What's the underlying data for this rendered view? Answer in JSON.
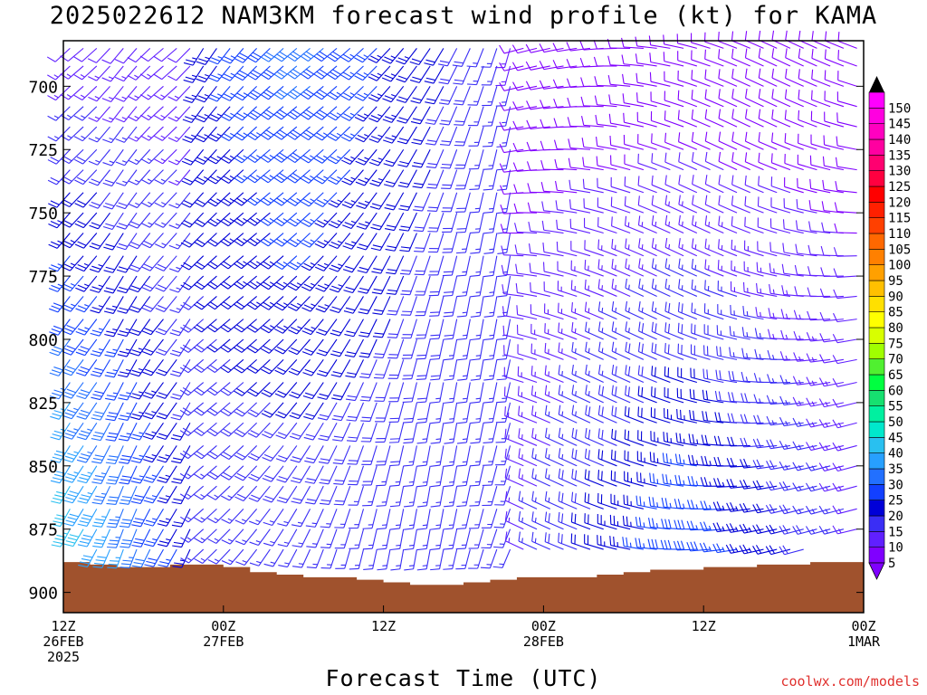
{
  "title": "2025022612 NAM3KM forecast wind profile (kt) for KAMA",
  "credit": "coolwx.com/models",
  "chart_data": {
    "type": "wind_barb_time_height",
    "title": "2025022612 NAM3KM forecast wind profile (kt) for KAMA",
    "xlabel": "Forecast Time (UTC)",
    "ylabel": "",
    "units": "kt",
    "y_axis": {
      "quantity": "pressure (hPa)",
      "ticks": [
        700,
        725,
        750,
        775,
        800,
        825,
        850,
        875,
        900
      ],
      "range": [
        682,
        908
      ],
      "inverted": true
    },
    "x_axis": {
      "range_hours": [
        0,
        60
      ],
      "ticks": [
        {
          "hour": 0,
          "lines": [
            "12Z",
            "26FEB",
            "2025"
          ]
        },
        {
          "hour": 12,
          "lines": [
            "00Z",
            "27FEB"
          ]
        },
        {
          "hour": 24,
          "lines": [
            "12Z"
          ]
        },
        {
          "hour": 36,
          "lines": [
            "00Z",
            "28FEB"
          ]
        },
        {
          "hour": 48,
          "lines": [
            "12Z"
          ]
        },
        {
          "hour": 60,
          "lines": [
            "00Z",
            "1MAR"
          ]
        }
      ]
    },
    "colorbar": {
      "labels": [
        5,
        10,
        15,
        20,
        25,
        30,
        35,
        40,
        45,
        50,
        55,
        60,
        65,
        70,
        75,
        80,
        85,
        90,
        95,
        100,
        105,
        110,
        115,
        120,
        125,
        130,
        135,
        140,
        145,
        150
      ],
      "colors": [
        "#8000ff",
        "#6020ff",
        "#3a2ef5",
        "#0000d8",
        "#1240ff",
        "#2270ff",
        "#27a0ff",
        "#29c0f0",
        "#00e8cc",
        "#00f0a0",
        "#16e070",
        "#00ff40",
        "#50f030",
        "#a0ff00",
        "#d8ff00",
        "#ffff00",
        "#ffe000",
        "#ffc000",
        "#ffa000",
        "#ff8000",
        "#ff6800",
        "#ff4000",
        "#ff2000",
        "#ff0000",
        "#ff0040",
        "#ff0070",
        "#ff00a0",
        "#ff00c0",
        "#ff00e0",
        "#ff00ff"
      ]
    },
    "terrain": {
      "color": "#a0522d",
      "surface_pressure_points": [
        [
          0,
          888
        ],
        [
          2,
          889
        ],
        [
          4,
          890
        ],
        [
          6,
          890
        ],
        [
          8,
          889
        ],
        [
          10,
          889
        ],
        [
          12,
          890
        ],
        [
          14,
          892
        ],
        [
          16,
          893
        ],
        [
          18,
          894
        ],
        [
          20,
          894
        ],
        [
          22,
          895
        ],
        [
          24,
          896
        ],
        [
          26,
          897
        ],
        [
          28,
          897
        ],
        [
          30,
          896
        ],
        [
          32,
          895
        ],
        [
          34,
          894
        ],
        [
          36,
          894
        ],
        [
          38,
          894
        ],
        [
          40,
          893
        ],
        [
          42,
          892
        ],
        [
          44,
          891
        ],
        [
          46,
          891
        ],
        [
          48,
          890
        ],
        [
          50,
          890
        ],
        [
          52,
          889
        ],
        [
          54,
          889
        ],
        [
          56,
          888
        ],
        [
          58,
          888
        ],
        [
          60,
          888
        ]
      ]
    },
    "wind_field": {
      "time_step_hours": 1,
      "pressure_levels_hPa": [
        685,
        692,
        700,
        708,
        716,
        725,
        733,
        742,
        750,
        758,
        767,
        775,
        783,
        792,
        800,
        808,
        817,
        825,
        833,
        842,
        850,
        858,
        867,
        875,
        883
      ],
      "note_regimes": [
        {
          "hours": [
            0,
            10
          ],
          "levels": "low",
          "speed_kt": [
            30,
            48
          ],
          "direction_deg": [
            200,
            240
          ]
        },
        {
          "hours": [
            10,
            32
          ],
          "speed_kt": [
            10,
            35
          ],
          "direction_deg": [
            200,
            240
          ]
        },
        {
          "hours": [
            32,
            60
          ],
          "speed_kt": [
            5,
            35
          ],
          "direction_deg": [
            270,
            300
          ]
        }
      ]
    }
  }
}
